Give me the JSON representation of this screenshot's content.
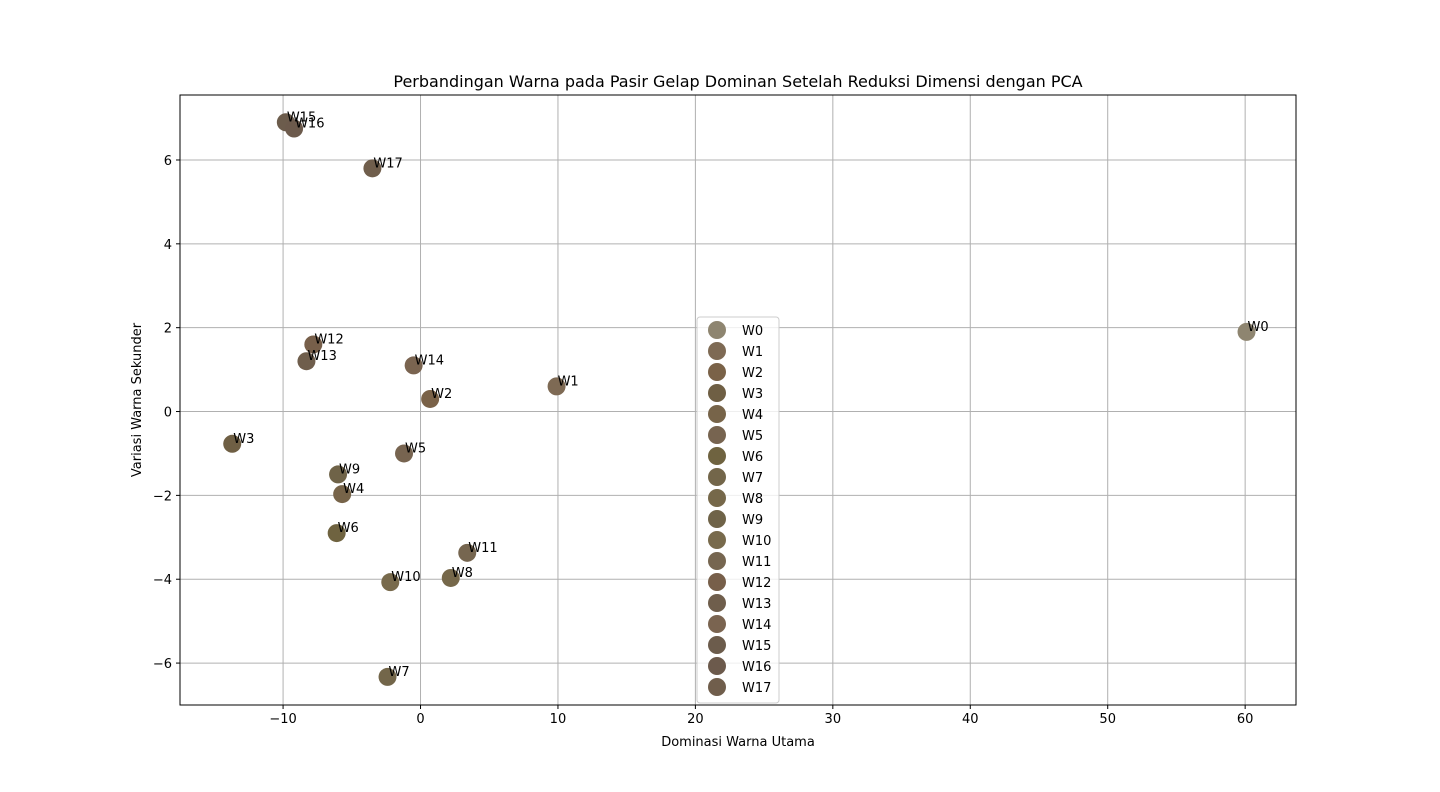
{
  "chart_data": {
    "type": "scatter",
    "title": "Perbandingan Warna pada Pasir Gelap Dominan Setelah Reduksi Dimensi dengan PCA",
    "xlabel": "Dominasi Warna Utama",
    "ylabel": "Variasi Warna Sekunder",
    "xlim": [
      -17.5,
      63.7
    ],
    "ylim": [
      -7.0,
      7.55
    ],
    "xticks": [
      -10,
      0,
      10,
      20,
      30,
      40,
      50,
      60
    ],
    "yticks": [
      -6,
      -4,
      -2,
      0,
      2,
      4,
      6
    ],
    "grid": true,
    "legend_position": "center",
    "points": [
      {
        "label": "W0",
        "x": 60.1,
        "y": 1.9,
        "color": "#8e8570"
      },
      {
        "label": "W1",
        "x": 9.9,
        "y": 0.6,
        "color": "#7e6a54"
      },
      {
        "label": "W2",
        "x": 0.7,
        "y": 0.3,
        "color": "#7a6248"
      },
      {
        "label": "W3",
        "x": -13.7,
        "y": -0.77,
        "color": "#6f5f44"
      },
      {
        "label": "W4",
        "x": -5.7,
        "y": -1.97,
        "color": "#776449"
      },
      {
        "label": "W5",
        "x": -1.2,
        "y": -1.0,
        "color": "#776450"
      },
      {
        "label": "W6",
        "x": -6.1,
        "y": -2.9,
        "color": "#6f6340"
      },
      {
        "label": "W7",
        "x": -2.4,
        "y": -6.33,
        "color": "#73664a"
      },
      {
        "label": "W8",
        "x": 2.2,
        "y": -3.97,
        "color": "#76684a"
      },
      {
        "label": "W9",
        "x": -6.0,
        "y": -1.5,
        "color": "#6f6348"
      },
      {
        "label": "W10",
        "x": -2.2,
        "y": -4.07,
        "color": "#786a4c"
      },
      {
        "label": "W11",
        "x": 3.4,
        "y": -3.37,
        "color": "#766650"
      },
      {
        "label": "W12",
        "x": -7.8,
        "y": 1.6,
        "color": "#775f4a"
      },
      {
        "label": "W13",
        "x": -8.3,
        "y": 1.2,
        "color": "#6f5e4c"
      },
      {
        "label": "W14",
        "x": -0.5,
        "y": 1.1,
        "color": "#7a6450"
      },
      {
        "label": "W15",
        "x": -9.8,
        "y": 6.9,
        "color": "#6c5c4c"
      },
      {
        "label": "W16",
        "x": -9.2,
        "y": 6.75,
        "color": "#6c5a4c"
      },
      {
        "label": "W17",
        "x": -3.5,
        "y": 5.8,
        "color": "#705e4c"
      }
    ]
  }
}
